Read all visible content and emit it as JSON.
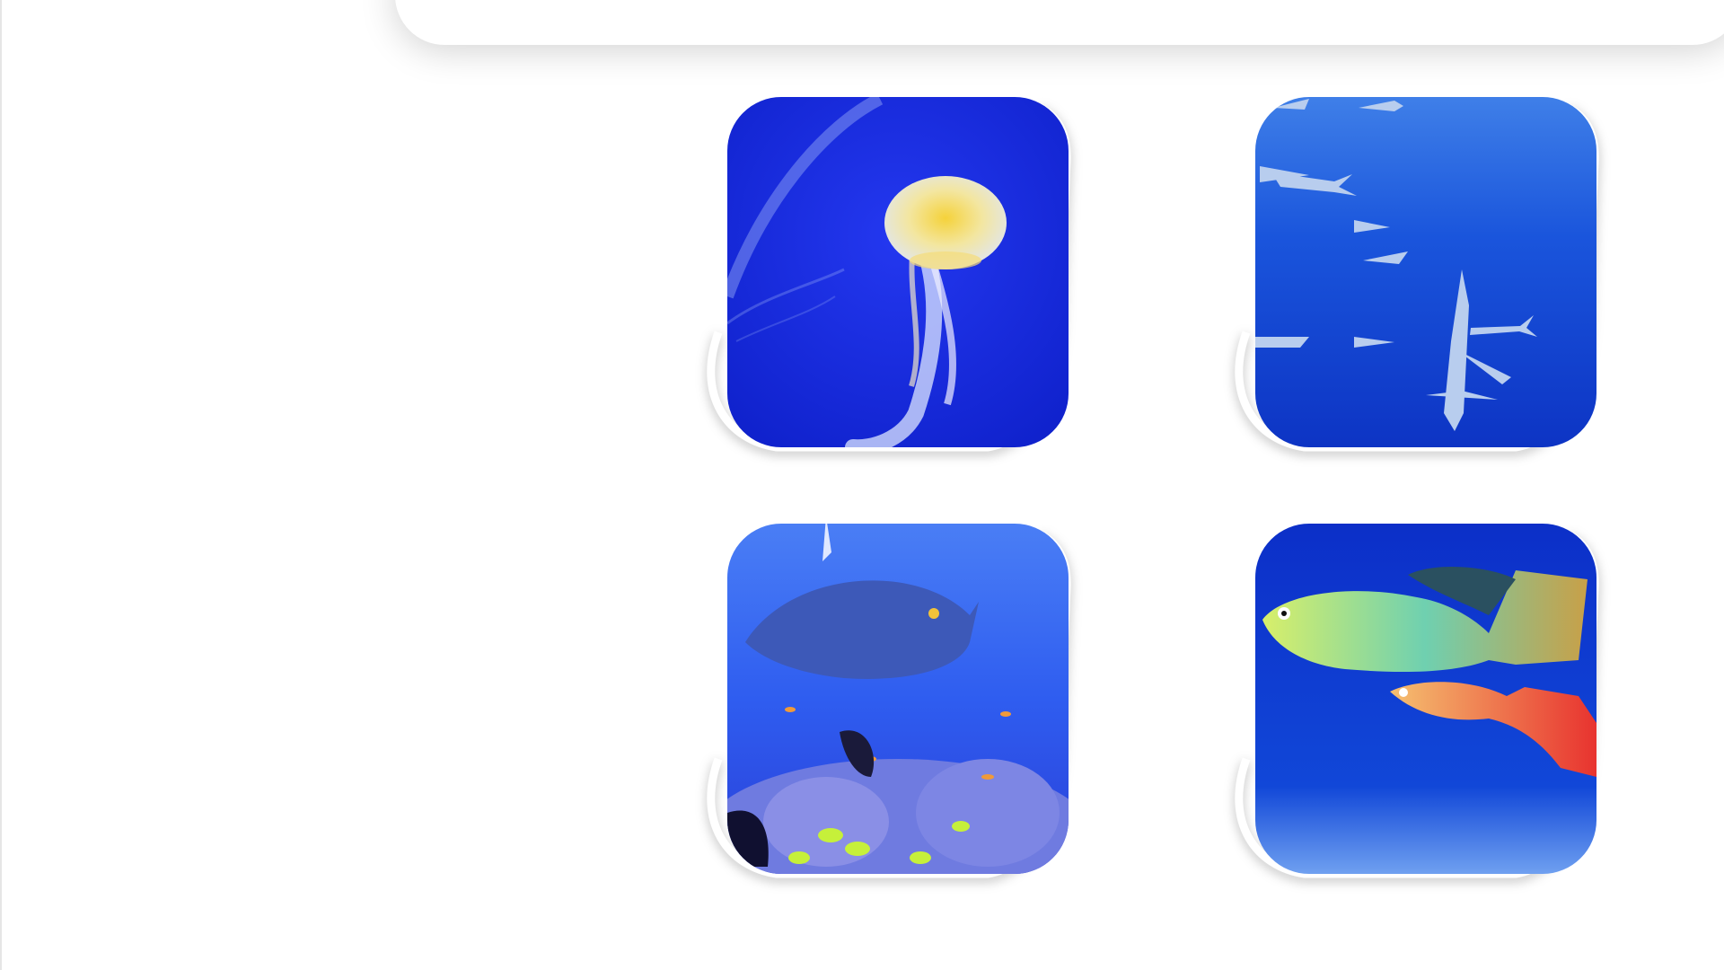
{
  "slide": {
    "background": "#ffffff",
    "tiles": [
      {
        "subject": "jellyfish",
        "colors": {
          "water": "#1a2ee6",
          "accent": "#f5d23a"
        }
      },
      {
        "subject": "sharks",
        "colors": {
          "water": "#1247d8",
          "accent": "#cfe3f5"
        }
      },
      {
        "subject": "reef-fish",
        "colors": {
          "water": "#2f5df0",
          "accent": "#c6f03a"
        }
      },
      {
        "subject": "guppies",
        "colors": {
          "water": "#0f3fd6",
          "accent": "#e8332f"
        }
      }
    ]
  }
}
